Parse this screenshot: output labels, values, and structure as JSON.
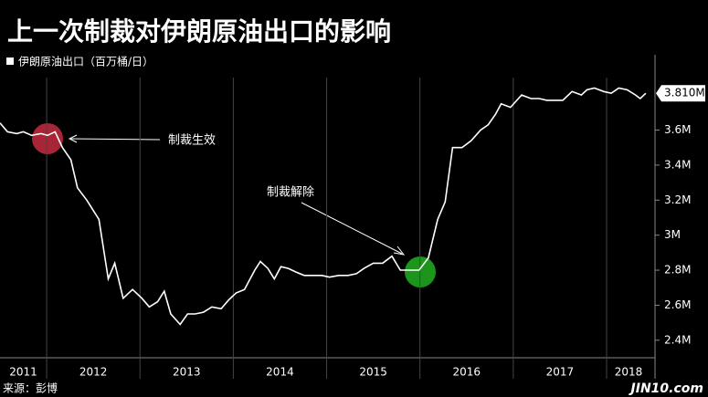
{
  "chart_data": {
    "type": "line",
    "title": "上一次制裁对伊朗原油出口的影响",
    "source": "来源：彭博",
    "watermark": "JIN10.com",
    "annotations": [
      {
        "text": "制裁生效"
      },
      {
        "text": "制裁解除"
      }
    ],
    "xlim": [
      2011.5,
      2018.47
    ],
    "xticks": [
      {
        "value": 2011,
        "label": "2011"
      },
      {
        "value": 2012,
        "label": "2012"
      },
      {
        "value": 2013,
        "label": "2013"
      },
      {
        "value": 2014,
        "label": "2014"
      },
      {
        "value": 2015,
        "label": "2015"
      },
      {
        "value": 2016,
        "label": "2016"
      },
      {
        "value": 2017,
        "label": "2017"
      },
      {
        "value": 2018,
        "label": "2018"
      }
    ],
    "ylim": [
      2.3,
      4.03
    ],
    "yticks": [
      {
        "value": 2.4,
        "label": "2.4M"
      },
      {
        "value": 2.6,
        "label": "2.6M"
      },
      {
        "value": 2.8,
        "label": "2.8M"
      },
      {
        "value": 3,
        "label": "3M"
      },
      {
        "value": 3.2,
        "label": "3.2M"
      },
      {
        "value": 3.4,
        "label": "3.4M"
      },
      {
        "value": 3.6,
        "label": "3.6M"
      }
    ],
    "grid": false,
    "series": [
      {
        "name": "伊朗原油出口（百万桶/日）",
        "color": "#ffffff",
        "x": [
          2011.5,
          2011.58,
          2011.68,
          2011.75,
          2011.84,
          2011.94,
          2012.01,
          2012.09,
          2012.17,
          2012.26,
          2012.33,
          2012.43,
          2012.56,
          2012.66,
          2012.73,
          2012.82,
          2012.92,
          2013.02,
          2013.1,
          2013.19,
          2013.26,
          2013.33,
          2013.43,
          2013.51,
          2013.59,
          2013.68,
          2013.77,
          2013.87,
          2013.95,
          2014.03,
          2014.12,
          2014.23,
          2014.29,
          2014.37,
          2014.44,
          2014.51,
          2014.59,
          2014.67,
          2014.76,
          2014.85,
          2014.95,
          2015.03,
          2015.13,
          2015.23,
          2015.32,
          2015.4,
          2015.5,
          2015.6,
          2015.7,
          2015.79,
          2015.89,
          2015.99,
          2016.09,
          2016.19,
          2016.27,
          2016.35,
          2016.45,
          2016.55,
          2016.65,
          2016.73,
          2016.81,
          2016.87,
          2016.97,
          2017.09,
          2017.19,
          2017.28,
          2017.36,
          2017.43,
          2017.53,
          2017.63,
          2017.73,
          2017.79,
          2017.87,
          2017.97,
          2018.05,
          2018.13,
          2018.22,
          2018.31,
          2018.36,
          2018.42
        ],
        "values": [
          3.64,
          3.59,
          3.58,
          3.59,
          3.57,
          3.58,
          3.57,
          3.59,
          3.5,
          3.43,
          3.27,
          3.2,
          3.09,
          2.75,
          2.84,
          2.64,
          2.69,
          2.64,
          2.59,
          2.62,
          2.68,
          2.55,
          2.49,
          2.55,
          2.55,
          2.56,
          2.59,
          2.58,
          2.63,
          2.67,
          2.69,
          2.8,
          2.85,
          2.81,
          2.75,
          2.82,
          2.81,
          2.79,
          2.77,
          2.77,
          2.77,
          2.76,
          2.77,
          2.77,
          2.78,
          2.81,
          2.84,
          2.84,
          2.88,
          2.8,
          2.8,
          2.8,
          2.87,
          3.09,
          3.19,
          3.5,
          3.5,
          3.54,
          3.6,
          3.63,
          3.69,
          3.75,
          3.73,
          3.8,
          3.78,
          3.78,
          3.77,
          3.77,
          3.77,
          3.82,
          3.8,
          3.83,
          3.84,
          3.82,
          3.81,
          3.84,
          3.83,
          3.8,
          3.78,
          3.81
        ]
      }
    ],
    "last_label": {
      "value": 3.81,
      "label": "3.810M"
    }
  }
}
